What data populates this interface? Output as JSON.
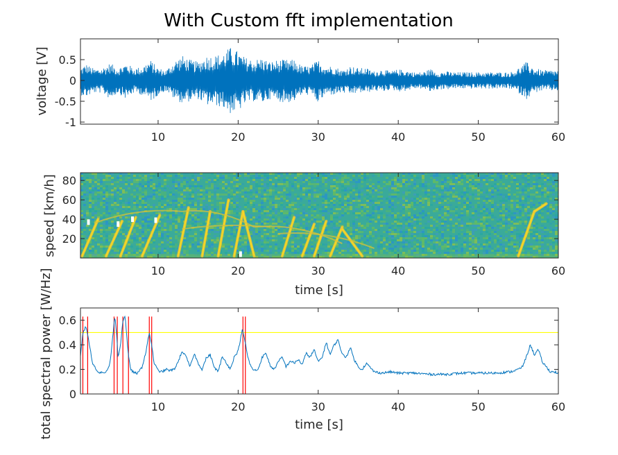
{
  "figure": {
    "title": "With Custom fft implementation"
  },
  "colors": {
    "signal": "#0072BD",
    "threshold": "#FFFF00",
    "detection": "#FF0000",
    "marker": "#FFFFFF"
  },
  "chart_data": [
    {
      "type": "line",
      "panel": "voltage",
      "xlabel": "",
      "ylabel": "voltage [V]",
      "xlim": [
        0.3,
        60
      ],
      "ylim": [
        -1.05,
        1.0
      ],
      "xticks": [
        10,
        20,
        30,
        40,
        50,
        60
      ],
      "yticks": [
        -1,
        -0.5,
        0,
        0.5
      ],
      "ytick_labels": [
        "-1",
        "-0.5",
        "0",
        "0.5"
      ],
      "envelope": {
        "t": [
          0.3,
          1,
          2,
          3,
          4,
          5,
          6,
          7,
          8,
          9,
          9.5,
          10,
          11,
          12,
          13,
          14,
          15,
          16,
          17,
          18,
          19,
          20,
          20.5,
          21,
          22,
          23,
          24,
          25,
          26,
          27,
          28,
          29,
          30,
          31,
          32,
          33,
          34,
          35,
          36,
          37,
          38,
          39,
          40,
          41,
          42,
          43,
          44,
          45,
          46,
          47,
          48,
          49,
          50,
          51,
          52,
          53,
          54,
          55,
          56,
          57,
          58,
          59,
          60
        ],
        "upper": [
          0.3,
          0.4,
          0.28,
          0.3,
          0.42,
          0.3,
          0.42,
          0.3,
          0.33,
          0.5,
          0.4,
          0.3,
          0.25,
          0.47,
          0.6,
          0.5,
          0.45,
          0.6,
          0.6,
          0.65,
          0.8,
          0.7,
          0.6,
          0.55,
          0.5,
          0.55,
          0.45,
          0.5,
          0.5,
          0.5,
          0.35,
          0.35,
          0.5,
          0.35,
          0.35,
          0.25,
          0.35,
          0.3,
          0.3,
          0.22,
          0.28,
          0.22,
          0.27,
          0.25,
          0.2,
          0.2,
          0.28,
          0.2,
          0.22,
          0.2,
          0.2,
          0.2,
          0.2,
          0.2,
          0.2,
          0.2,
          0.2,
          0.3,
          0.45,
          0.3,
          0.25,
          0.25,
          0.25
        ],
        "lower": [
          -0.35,
          -0.4,
          -0.3,
          -0.3,
          -0.45,
          -0.3,
          -0.45,
          -0.3,
          -0.35,
          -0.5,
          -0.45,
          -0.35,
          -0.25,
          -0.45,
          -0.55,
          -0.5,
          -0.45,
          -0.6,
          -0.6,
          -0.65,
          -0.8,
          -0.75,
          -0.65,
          -0.55,
          -0.5,
          -0.55,
          -0.45,
          -0.5,
          -0.55,
          -0.5,
          -0.35,
          -0.35,
          -0.55,
          -0.35,
          -0.35,
          -0.3,
          -0.35,
          -0.3,
          -0.3,
          -0.25,
          -0.28,
          -0.22,
          -0.27,
          -0.25,
          -0.2,
          -0.2,
          -0.28,
          -0.22,
          -0.22,
          -0.2,
          -0.2,
          -0.2,
          -0.2,
          -0.2,
          -0.2,
          -0.2,
          -0.2,
          -0.3,
          -0.45,
          -0.3,
          -0.25,
          -0.25,
          -0.25
        ]
      }
    },
    {
      "type": "heatmap",
      "panel": "spectrogram",
      "xlabel": "time [s]",
      "ylabel": "speed [km/h]",
      "xlim": [
        0.3,
        60
      ],
      "ylim": [
        0,
        88
      ],
      "xticks": [
        10,
        20,
        30,
        40,
        50,
        60
      ],
      "yticks": [
        20,
        40,
        60,
        80
      ],
      "colormap": "parula",
      "tracks": [
        {
          "t0": 0.5,
          "t1": 2.5,
          "v0": 2,
          "v1": 40
        },
        {
          "t0": 3.5,
          "t1": 5.5,
          "v0": 2,
          "v1": 38
        },
        {
          "t0": 5.3,
          "t1": 7.2,
          "v0": 2,
          "v1": 42
        },
        {
          "t0": 8.0,
          "t1": 10.2,
          "v0": 2,
          "v1": 44
        },
        {
          "t0": 12.5,
          "t1": 13.8,
          "v0": 2,
          "v1": 52
        },
        {
          "t0": 15.5,
          "t1": 16.5,
          "v0": 2,
          "v1": 48
        },
        {
          "t0": 17.5,
          "t1": 18.8,
          "v0": 2,
          "v1": 60
        },
        {
          "t0": 19.5,
          "t1": 20.6,
          "v0": 2,
          "v1": 48
        },
        {
          "t0": 20.6,
          "t1": 22,
          "v0": 48,
          "v1": 2
        },
        {
          "t0": 25.5,
          "t1": 27,
          "v0": 2,
          "v1": 42
        },
        {
          "t0": 28,
          "t1": 29.5,
          "v0": 2,
          "v1": 35
        },
        {
          "t0": 29.5,
          "t1": 31,
          "v0": 2,
          "v1": 38
        },
        {
          "t0": 31.5,
          "t1": 33,
          "v0": 2,
          "v1": 32
        },
        {
          "t0": 33,
          "t1": 35.5,
          "v0": 30,
          "v1": 2
        },
        {
          "t0": 55,
          "t1": 57,
          "v0": 2,
          "v1": 48
        },
        {
          "t0": 57,
          "t1": 58.5,
          "v0": 48,
          "v1": 56
        }
      ],
      "curves": [
        {
          "t0": 2,
          "t1": 13,
          "v0": 36,
          "v1": 48
        },
        {
          "t0": 13,
          "t1": 22,
          "v0": 48,
          "v1": 32
        },
        {
          "t0": 13,
          "t1": 24,
          "v0": 30,
          "v1": 32
        },
        {
          "t0": 22,
          "t1": 33,
          "v0": 32,
          "v1": 15
        },
        {
          "t0": 25,
          "t1": 37,
          "v0": 25,
          "v1": 10
        }
      ],
      "markers": [
        {
          "t": 1.3,
          "v": 37
        },
        {
          "t": 5.0,
          "v": 35
        },
        {
          "t": 6.8,
          "v": 40
        },
        {
          "t": 9.7,
          "v": 39
        },
        {
          "t": 20.3,
          "v": 4
        }
      ]
    },
    {
      "type": "line",
      "panel": "power",
      "xlabel": "time [s]",
      "ylabel": "total spectral power [W/Hz]",
      "xlim": [
        0.3,
        60
      ],
      "ylim": [
        0,
        0.7
      ],
      "xticks": [
        10,
        20,
        30,
        40,
        50,
        60
      ],
      "yticks": [
        0,
        0.2,
        0.4,
        0.6
      ],
      "threshold": 0.5,
      "detections": [
        0.6,
        1.2,
        4.5,
        4.9,
        5.6,
        6.3,
        8.9,
        9.2,
        20.6,
        20.9
      ],
      "series": {
        "t": [
          0.3,
          0.6,
          1.0,
          1.3,
          1.8,
          2.5,
          3.0,
          3.5,
          4.0,
          4.3,
          4.6,
          4.8,
          5.0,
          5.3,
          5.6,
          5.9,
          6.1,
          6.3,
          6.6,
          7.0,
          7.5,
          8.0,
          8.5,
          8.9,
          9.2,
          9.5,
          10,
          10.5,
          11,
          11.5,
          12,
          12.5,
          13,
          13.5,
          14,
          14.5,
          15,
          15.5,
          16,
          16.5,
          17,
          17.5,
          18,
          18.5,
          19,
          19.5,
          20,
          20.5,
          20.8,
          21.2,
          21.6,
          22,
          22.5,
          23,
          23.5,
          24,
          24.5,
          25,
          25.5,
          26,
          26.5,
          27,
          27.5,
          28,
          28.5,
          29,
          29.5,
          30,
          30.5,
          31,
          31.5,
          32,
          32.5,
          33,
          33.5,
          34,
          34.5,
          35,
          35.5,
          36,
          37,
          38,
          39,
          40,
          42,
          44,
          46,
          48,
          50,
          52,
          54,
          55,
          55.5,
          56,
          56.5,
          57,
          57.5,
          58,
          58.5,
          59,
          59.5,
          60
        ],
        "values": [
          0.3,
          0.5,
          0.55,
          0.45,
          0.25,
          0.18,
          0.17,
          0.18,
          0.25,
          0.45,
          0.63,
          0.5,
          0.3,
          0.4,
          0.6,
          0.63,
          0.45,
          0.3,
          0.2,
          0.17,
          0.17,
          0.22,
          0.35,
          0.5,
          0.4,
          0.25,
          0.19,
          0.18,
          0.2,
          0.19,
          0.2,
          0.26,
          0.35,
          0.3,
          0.22,
          0.33,
          0.25,
          0.2,
          0.29,
          0.32,
          0.22,
          0.18,
          0.3,
          0.26,
          0.2,
          0.3,
          0.35,
          0.52,
          0.45,
          0.3,
          0.22,
          0.19,
          0.2,
          0.3,
          0.33,
          0.23,
          0.2,
          0.26,
          0.3,
          0.22,
          0.27,
          0.25,
          0.28,
          0.24,
          0.33,
          0.3,
          0.36,
          0.26,
          0.3,
          0.42,
          0.32,
          0.4,
          0.44,
          0.32,
          0.3,
          0.38,
          0.28,
          0.22,
          0.2,
          0.25,
          0.18,
          0.17,
          0.18,
          0.17,
          0.17,
          0.16,
          0.16,
          0.17,
          0.17,
          0.17,
          0.18,
          0.2,
          0.22,
          0.3,
          0.4,
          0.32,
          0.36,
          0.26,
          0.22,
          0.18,
          0.18,
          0.17
        ]
      }
    }
  ]
}
